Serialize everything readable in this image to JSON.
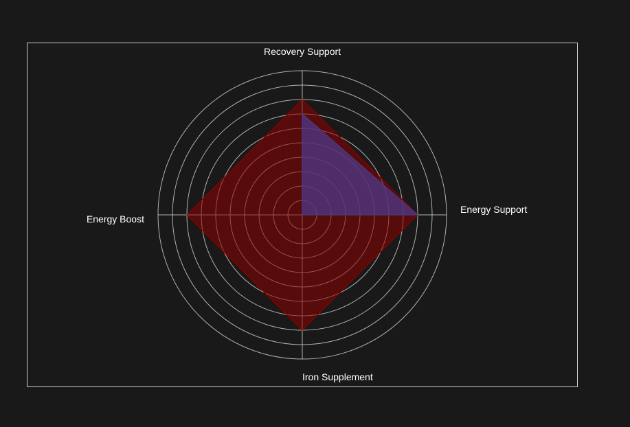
{
  "chart_data": {
    "type": "radar",
    "categories": [
      "Recovery Support",
      "Energy Support",
      "Iron Supplement",
      "Energy Boost"
    ],
    "series": [
      {
        "values": [
          8,
          8,
          8,
          8
        ],
        "color": "#8b0000"
      },
      {
        "values": [
          7,
          8,
          0,
          0
        ],
        "color": "#4b3a8a"
      }
    ],
    "rlim": [
      0,
      10
    ],
    "rings": 10,
    "grid": true,
    "legend": "none"
  },
  "colors": {
    "background": "#191919",
    "frame": "#d0d0d0",
    "grid": "#cccccc",
    "text": "#ffffff"
  }
}
